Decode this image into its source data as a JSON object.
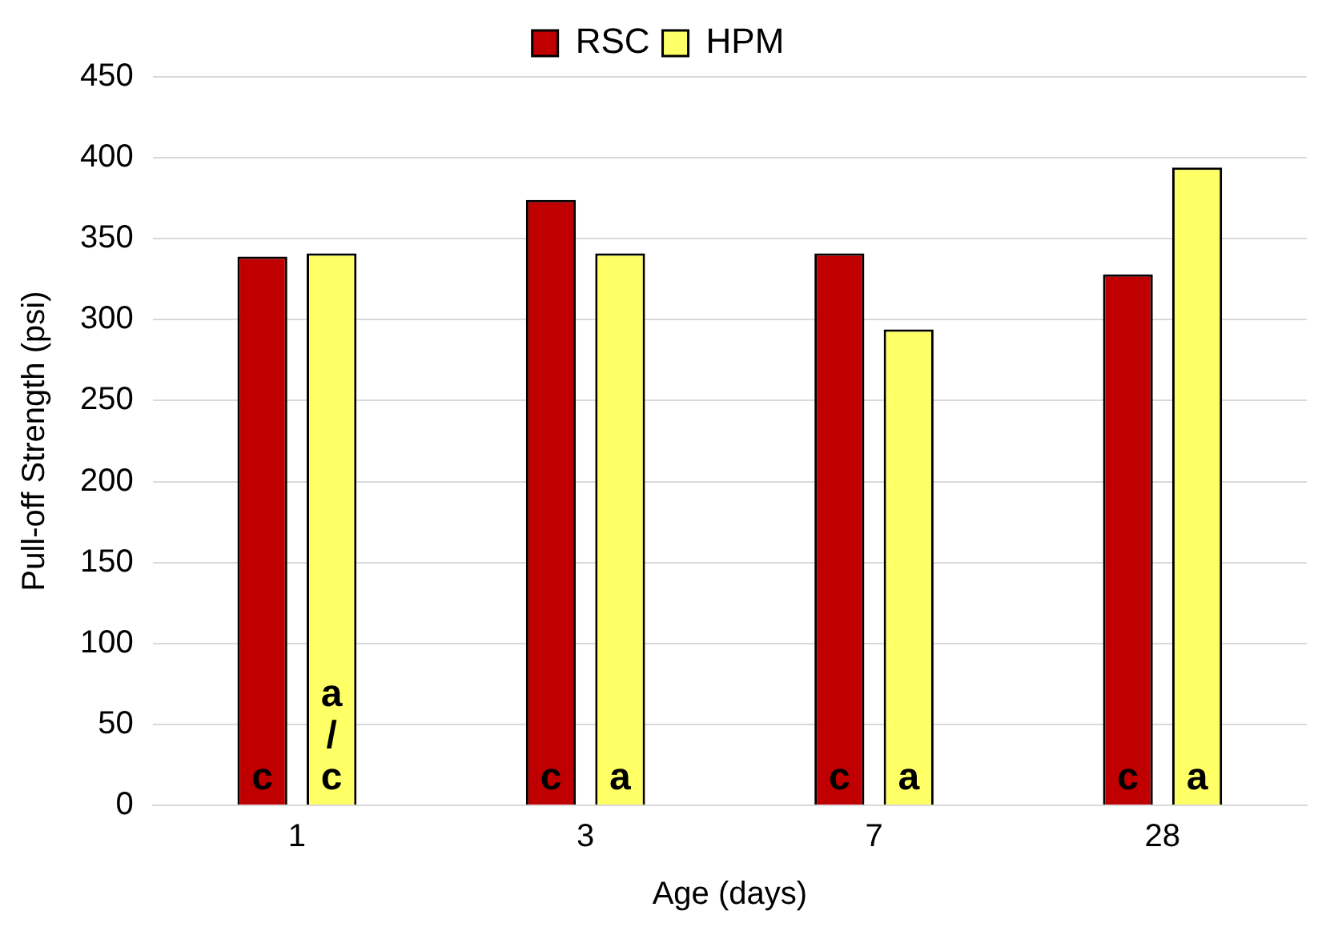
{
  "chart_data": {
    "type": "bar",
    "xlabel": "Age (days)",
    "ylabel": "Pull-off Strength (psi)",
    "categories": [
      "1",
      "3",
      "7",
      "28"
    ],
    "series": [
      {
        "name": "RSC",
        "color": "#c00000",
        "values": [
          339,
          374,
          341,
          328
        ],
        "value_labels": [
          "c",
          "c",
          "c",
          "c"
        ]
      },
      {
        "name": "HPM",
        "color": "#ffff66",
        "values": [
          341,
          341,
          294,
          394
        ],
        "value_labels": [
          "a/c",
          "a",
          "a",
          "a"
        ]
      }
    ],
    "ylim": [
      0,
      450
    ],
    "yticks": [
      0,
      50,
      100,
      150,
      200,
      250,
      300,
      350,
      400,
      450
    ],
    "grid": "y",
    "legend": "top"
  }
}
